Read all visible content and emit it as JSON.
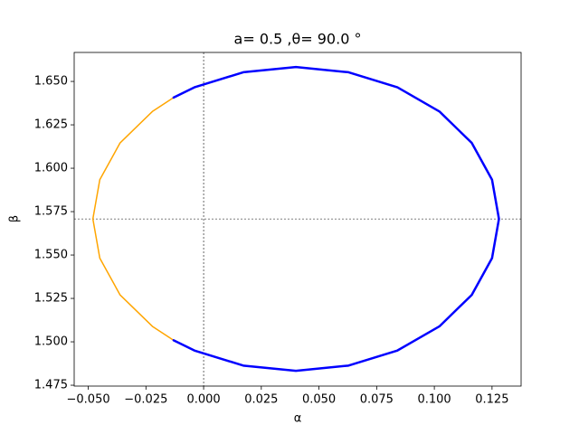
{
  "chart_data": {
    "type": "line",
    "title": "a= 0.5 ,θ= 90.0 °",
    "x_label": "α",
    "y_label": "β",
    "xlim": [
      -0.0561,
      0.1376
    ],
    "ylim": [
      1.4745,
      1.6667
    ],
    "xticks": [
      {
        "value": -0.05,
        "label": "−0.050"
      },
      {
        "value": -0.025,
        "label": "−0.025"
      },
      {
        "value": 0,
        "label": "0.000"
      },
      {
        "value": 0.025,
        "label": "0.025"
      },
      {
        "value": 0.05,
        "label": "0.050"
      },
      {
        "value": 0.075,
        "label": "0.075"
      },
      {
        "value": 0.1,
        "label": "0.100"
      },
      {
        "value": 0.125,
        "label": "0.125"
      }
    ],
    "yticks": [
      {
        "value": 1.475,
        "label": "1.475"
      },
      {
        "value": 1.5,
        "label": "1.500"
      },
      {
        "value": 1.525,
        "label": "1.525"
      },
      {
        "value": 1.55,
        "label": "1.550"
      },
      {
        "value": 1.575,
        "label": "1.575"
      },
      {
        "value": 1.6,
        "label": "1.600"
      },
      {
        "value": 1.625,
        "label": "1.625"
      },
      {
        "value": 1.65,
        "label": "1.650"
      }
    ],
    "reference_lines": {
      "x": 0,
      "y": 1.5708
    },
    "series": [
      {
        "color": "#ffa500",
        "width": 1.5,
        "x": [
          -0.013,
          -0.0222,
          -0.0362,
          -0.045,
          -0.048,
          -0.045,
          -0.0362,
          -0.0222,
          -0.013
        ],
        "values": [
          1.6407,
          1.6327,
          1.6146,
          1.5934,
          1.5708,
          1.5482,
          1.527,
          1.5089,
          1.5009
        ]
      },
      {
        "color": "#0000ff",
        "width": 2.5,
        "x": [
          -0.013,
          -0.004,
          0.0172,
          0.04,
          0.0628,
          0.084,
          0.1022,
          0.1162,
          0.125,
          0.128,
          0.125,
          0.1162,
          0.1022,
          0.084,
          0.0628,
          0.04,
          0.0172,
          -0.004,
          -0.013
        ],
        "values": [
          1.6407,
          1.6466,
          1.6553,
          1.6583,
          1.6553,
          1.6466,
          1.6327,
          1.6146,
          1.5934,
          1.5708,
          1.5482,
          1.527,
          1.5089,
          1.495,
          1.4863,
          1.4833,
          1.4863,
          1.495,
          1.5009
        ]
      }
    ]
  }
}
